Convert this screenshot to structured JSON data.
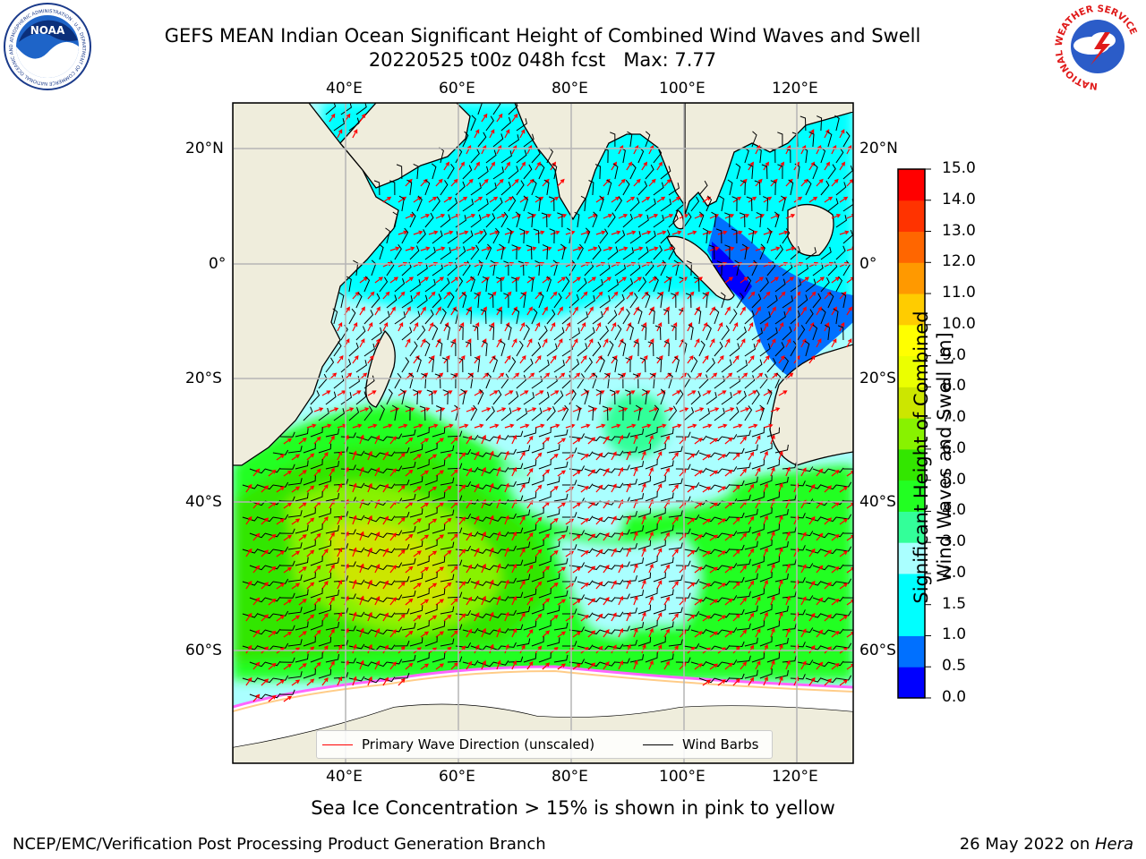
{
  "title": {
    "line1": "GEFS MEAN Indian Ocean Significant Height of Combined Wind Waves and Swell",
    "line2": "20220525 t00z 048h fcst   Max: 7.77"
  },
  "map": {
    "region": "Indian Ocean",
    "lon_ticks": [
      "40°E",
      "60°E",
      "80°E",
      "100°E",
      "120°E"
    ],
    "lat_ticks_left": [
      "20°N",
      "0°",
      "20°S",
      "40°S",
      "60°S"
    ],
    "lat_ticks_right": [
      "20°N",
      "0°",
      "20°S",
      "40°S",
      "60°S"
    ],
    "colors": {
      "land": "#efeddc",
      "sea_ice": "#ffffff",
      "grid": "#b5b5b5"
    },
    "max_value": 7.77
  },
  "colorbar": {
    "label": "Significant Height of Combined Wind Waves and Swell [m]",
    "label_line1": "Significant Height of Combined",
    "label_line2": "Wind Waves and Swell [m]",
    "ticks": [
      "0.0",
      "0.5",
      "1.0",
      "1.5",
      "2.0",
      "3.0",
      "4.0",
      "5.0",
      "6.0",
      "7.0",
      "8.0",
      "9.0",
      "10.0",
      "11.0",
      "12.0",
      "13.0",
      "14.0",
      "15.0"
    ],
    "colors": [
      "#0000ff",
      "#0070ff",
      "#00ffff",
      "#00ffff",
      "#aaffff",
      "#33ff99",
      "#22ff22",
      "#33e600",
      "#88f200",
      "#cce600",
      "#ebff00",
      "#ffff00",
      "#ffcc00",
      "#ff9900",
      "#ff6600",
      "#ff3300",
      "#ff0000"
    ]
  },
  "legend": {
    "wave_direction": "Primary Wave Direction (unscaled)",
    "wind_barbs": "Wind Barbs",
    "wave_color": "#ff0000",
    "barb_color": "#000000"
  },
  "caption": "Sea Ice Concentration > 15% is shown in pink to yellow",
  "footer": {
    "left": "NCEP/EMC/Verification Post Processing Product Generation Branch",
    "date": "26 May 2022 on ",
    "machine": "Hera"
  },
  "logos": {
    "noaa": "NOAA",
    "noaa_ring": "NATIONAL OCEANIC AND ATMOSPHERIC ADMINISTRATION · U.S. DEPARTMENT OF COMMERCE",
    "nws_ring": "NATIONAL WEATHER SERVICE"
  }
}
